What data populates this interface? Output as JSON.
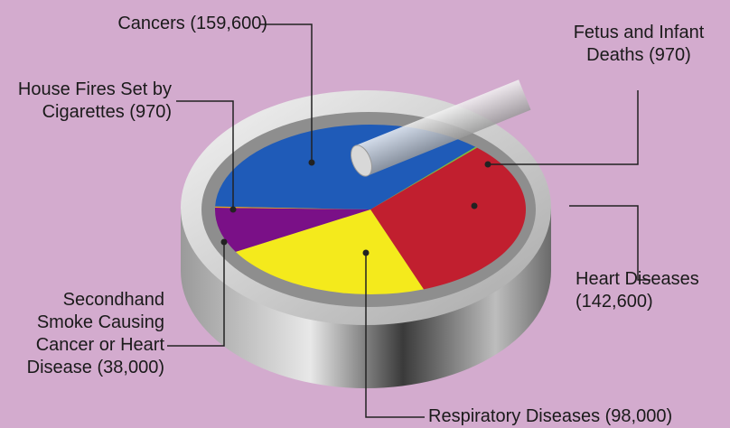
{
  "chart_data": {
    "type": "pie",
    "categories": [
      "Cancers",
      "Fetus and Infant Deaths",
      "Heart Diseases",
      "Respiratory Diseases",
      "Secondhand Smoke Causing Cancer or Heart Disease",
      "House Fires Set by Cigarettes"
    ],
    "values": [
      159600,
      970,
      142600,
      98000,
      38000,
      970
    ],
    "value_labels": [
      "(159,600)",
      "(970)",
      "(142,600)",
      "(98,000)",
      "(38,000)",
      "(970)"
    ],
    "colors": [
      "#1f5bb8",
      "#7cbf3a",
      "#c11f2f",
      "#f4ea1c",
      "#7a1087",
      "#e6a21f"
    ]
  }
}
